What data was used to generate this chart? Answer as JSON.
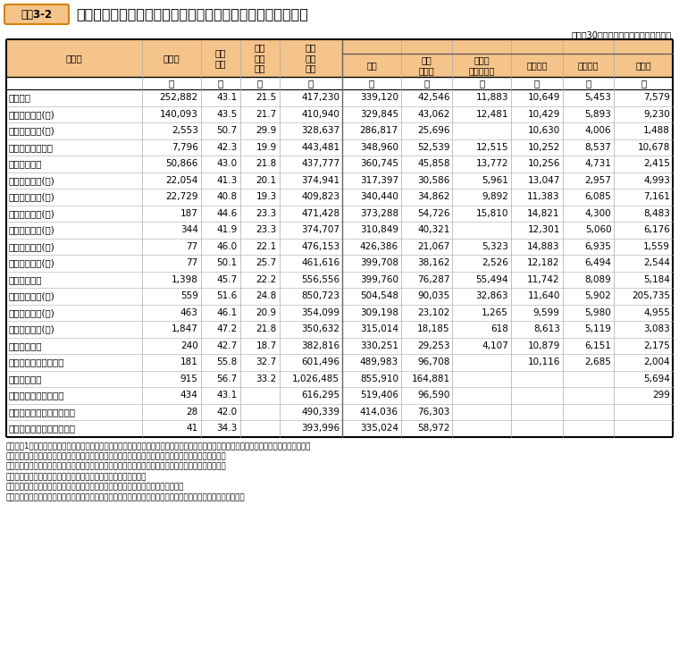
{
  "title": "俸給表別職員数、平均年齢、平均経験年数及び平均給与月額",
  "label_box": "資料3-2",
  "subtitle": "（平成30年国家公務員給与等実態調査）",
  "col_headers": [
    "俸給表",
    "職員数",
    "平均\n年齢",
    "平均\n経験\n年数",
    "平均\n給与\n月額",
    "俸給",
    "地域\n手当等",
    "俸給の\n特別調整額",
    "扶養手当",
    "住居手当",
    "その他"
  ],
  "unit_row": [
    "",
    "人",
    "歳",
    "年",
    "円",
    "円",
    "円",
    "円",
    "円",
    "円",
    "円"
  ],
  "rows": [
    [
      "全俸給表",
      "252,882",
      "43.1",
      "21.5",
      "417,230",
      "339,120",
      "42,546",
      "11,883",
      "10,649",
      "5,453",
      "7,579"
    ],
    [
      "行政職俸給表(一)",
      "140,093",
      "43.5",
      "21.7",
      "410,940",
      "329,845",
      "43,062",
      "12,481",
      "10,429",
      "5,893",
      "9,230"
    ],
    [
      "行政職俸給表(二)",
      "2,553",
      "50.7",
      "29.9",
      "328,637",
      "286,817",
      "25,696",
      "",
      "10,630",
      "4,006",
      "1,488"
    ],
    [
      "専門行政職俸給表",
      "7,796",
      "42.3",
      "19.9",
      "443,481",
      "348,960",
      "52,539",
      "12,515",
      "10,252",
      "8,537",
      "10,678"
    ],
    [
      "税務職俸給表",
      "50,866",
      "43.0",
      "21.8",
      "437,777",
      "360,745",
      "45,858",
      "13,772",
      "10,256",
      "4,731",
      "2,415"
    ],
    [
      "公安職俸給表(一)",
      "22,054",
      "41.3",
      "20.1",
      "374,941",
      "317,397",
      "30,586",
      "5,961",
      "13,047",
      "2,957",
      "4,993"
    ],
    [
      "公安職俸給表(二)",
      "22,729",
      "40.8",
      "19.3",
      "409,823",
      "340,440",
      "34,862",
      "9,892",
      "11,383",
      "6,085",
      "7,161"
    ],
    [
      "海事職俸給表(一)",
      "187",
      "44.6",
      "23.3",
      "471,428",
      "373,288",
      "54,726",
      "15,810",
      "14,821",
      "4,300",
      "8,483"
    ],
    [
      "海事職俸給表(二)",
      "344",
      "41.9",
      "23.3",
      "374,707",
      "310,849",
      "40,321",
      "",
      "12,301",
      "5,060",
      "6,176"
    ],
    [
      "教育職俸給表(一)",
      "77",
      "46.0",
      "22.1",
      "476,153",
      "426,386",
      "21,067",
      "5,323",
      "14,883",
      "6,935",
      "1,559"
    ],
    [
      "教育職俸給表(二)",
      "77",
      "50.1",
      "25.7",
      "461,616",
      "399,708",
      "38,162",
      "2,526",
      "12,182",
      "6,494",
      "2,544"
    ],
    [
      "研究職俸給表",
      "1,398",
      "45.7",
      "22.2",
      "556,556",
      "399,760",
      "76,287",
      "55,494",
      "11,742",
      "8,089",
      "5,184"
    ],
    [
      "医療職俸給表(一)",
      "559",
      "51.6",
      "24.8",
      "850,723",
      "504,548",
      "90,035",
      "32,863",
      "11,640",
      "5,902",
      "205,735"
    ],
    [
      "医療職俸給表(二)",
      "463",
      "46.1",
      "20.9",
      "354,099",
      "309,198",
      "23,102",
      "1,265",
      "9,599",
      "5,980",
      "4,955"
    ],
    [
      "医療職俸給表(三)",
      "1,847",
      "47.2",
      "21.8",
      "350,632",
      "315,014",
      "18,185",
      "618",
      "8,613",
      "5,119",
      "3,083"
    ],
    [
      "福祉職俸給表",
      "240",
      "42.7",
      "18.7",
      "382,816",
      "330,251",
      "29,253",
      "4,107",
      "10,879",
      "6,151",
      "2,175"
    ],
    [
      "専門スタッフ職俸給表",
      "181",
      "55.8",
      "32.7",
      "601,496",
      "489,983",
      "96,708",
      "",
      "10,116",
      "2,685",
      "2,004"
    ],
    [
      "指定職俸給表",
      "915",
      "56.7",
      "33.2",
      "1,026,485",
      "855,910",
      "164,881",
      "",
      "",
      "",
      "5,694"
    ],
    [
      "特定任期付職員俸給表",
      "434",
      "43.1",
      "",
      "616,295",
      "519,406",
      "96,590",
      "",
      "",
      "",
      "299"
    ],
    [
      "第一号任期付研究員俸給表",
      "28",
      "42.0",
      "",
      "490,339",
      "414,036",
      "76,303",
      "",
      "",
      "",
      ""
    ],
    [
      "第二号任期付研究員俸給表",
      "41",
      "34.3",
      "",
      "393,996",
      "335,024",
      "58,972",
      "",
      "",
      "",
      ""
    ]
  ],
  "notes": [
    [
      "（注）",
      "1",
      "職員数は、給与法、任期付研究員法及び任期付職員法が適用される４月１日現在の在職者（新規採用者、再任用職員、休職者、派遣"
    ],
    [
      "",
      "",
      "職員（専ら派遣先の業務に従事する職員に限る。）、在外公館勤務者等は含まない。）である。"
    ],
    [
      "",
      "２",
      "「全俸給表」の「平均経験年数」には、特定任期付職員及び任期付研究員は含まれていない。"
    ],
    [
      "",
      "３",
      "「俸給」には、俸給の調整額及び差額基本手当を含む。"
    ],
    [
      "",
      "４",
      "「地域手当等」には、異動保障による地域手当及び広域異動手当を含む。"
    ],
    [
      "",
      "５",
      "「その他」は、本府省業務調整手当、単身赴任手当（基礎額）、寒冷地手当、特地勤務手当等である。"
    ]
  ],
  "header_bg": "#f5c48a",
  "label_box_bg": "#f5c48a",
  "label_box_border": "#d4820a",
  "col_widths_rel": [
    1.9,
    0.82,
    0.55,
    0.55,
    0.88,
    0.82,
    0.72,
    0.82,
    0.72,
    0.72,
    0.82
  ]
}
